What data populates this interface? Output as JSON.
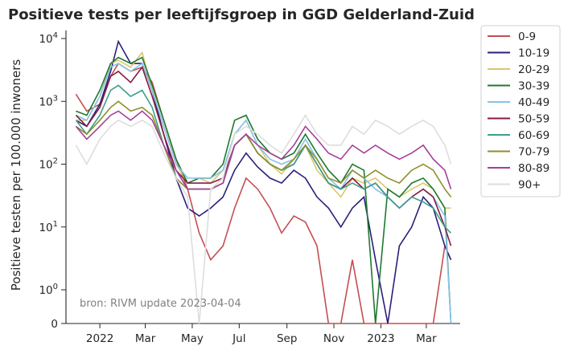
{
  "chart_data": {
    "type": "line",
    "title": "Positieve tests per leeftijfsgroep in GGD Gelderland-Zuid",
    "xlabel": "",
    "ylabel": "Positieve testen per 100.000 inwoners",
    "yscale": "symlog",
    "y_ticks": [
      {
        "value": 0,
        "label": "0"
      },
      {
        "value": 1,
        "label": "10^0"
      },
      {
        "value": 10,
        "label": "10^1"
      },
      {
        "value": 100,
        "label": "10^2"
      },
      {
        "value": 1000,
        "label": "10^3"
      },
      {
        "value": 10000,
        "label": "10^4"
      }
    ],
    "x_ticks": [
      {
        "date": "2022-01-01",
        "label": "2022"
      },
      {
        "date": "2022-03-01",
        "label": "Mar"
      },
      {
        "date": "2022-05-01",
        "label": "May"
      },
      {
        "date": "2022-07-01",
        "label": "Jul"
      },
      {
        "date": "2022-09-01",
        "label": "Sep"
      },
      {
        "date": "2022-11-01",
        "label": "Nov"
      },
      {
        "date": "2023-01-01",
        "label": "2023"
      },
      {
        "date": "2023-03-01",
        "label": "Mar"
      }
    ],
    "xlim": [
      "2021-11-18",
      "2023-04-14"
    ],
    "grid": false,
    "legend_placement": "outside-right-top",
    "annotation": "bron: RIVM update 2023-04-04",
    "x": [
      "2021-12-01",
      "2021-12-15",
      "2022-01-01",
      "2022-01-15",
      "2022-01-25",
      "2022-02-10",
      "2022-02-25",
      "2022-03-10",
      "2022-03-25",
      "2022-04-10",
      "2022-04-25",
      "2022-05-10",
      "2022-05-25",
      "2022-06-10",
      "2022-06-25",
      "2022-07-10",
      "2022-07-25",
      "2022-08-10",
      "2022-08-25",
      "2022-09-10",
      "2022-09-25",
      "2022-10-10",
      "2022-10-25",
      "2022-11-10",
      "2022-11-25",
      "2022-12-10",
      "2022-12-25",
      "2023-01-10",
      "2023-01-25",
      "2023-02-10",
      "2023-02-25",
      "2023-03-10",
      "2023-03-25",
      "2023-04-02"
    ],
    "series": [
      {
        "name": "0-9",
        "color": "#c44e52",
        "values": [
          1300,
          700,
          900,
          2500,
          4000,
          3000,
          3500,
          2000,
          500,
          120,
          40,
          8,
          3,
          5,
          20,
          60,
          40,
          20,
          8,
          15,
          12,
          5,
          0,
          0,
          3,
          0,
          0,
          0,
          0,
          0,
          0,
          0,
          5,
          3
        ]
      },
      {
        "name": "10-19",
        "color": "#2a1f7a",
        "values": [
          500,
          400,
          900,
          3000,
          9000,
          4000,
          4000,
          1500,
          300,
          60,
          20,
          15,
          20,
          30,
          80,
          150,
          90,
          60,
          50,
          80,
          60,
          30,
          20,
          10,
          20,
          30,
          3,
          0,
          5,
          10,
          30,
          20,
          5,
          3
        ]
      },
      {
        "name": "20-29",
        "color": "#dcc66a",
        "values": [
          500,
          500,
          1200,
          4000,
          4500,
          3500,
          6000,
          1500,
          400,
          100,
          50,
          60,
          50,
          80,
          300,
          500,
          200,
          100,
          70,
          120,
          200,
          80,
          50,
          30,
          60,
          50,
          60,
          40,
          30,
          40,
          50,
          40,
          20,
          20
        ]
      },
      {
        "name": "30-39",
        "color": "#1e7a2e",
        "values": [
          700,
          600,
          1500,
          4000,
          5000,
          4000,
          5000,
          1800,
          500,
          120,
          50,
          60,
          60,
          100,
          500,
          600,
          250,
          150,
          120,
          150,
          300,
          150,
          80,
          50,
          100,
          80,
          0,
          40,
          30,
          50,
          60,
          40,
          20,
          0
        ]
      },
      {
        "name": "40-49",
        "color": "#87c3e9",
        "values": [
          600,
          500,
          1200,
          3500,
          4000,
          3000,
          4000,
          1500,
          400,
          100,
          60,
          60,
          60,
          80,
          300,
          500,
          200,
          120,
          100,
          120,
          250,
          120,
          60,
          40,
          80,
          60,
          40,
          30,
          20,
          30,
          40,
          30,
          15,
          0
        ]
      },
      {
        "name": "50-59",
        "color": "#8a1a42",
        "values": [
          600,
          400,
          800,
          2500,
          3000,
          2000,
          3500,
          1200,
          300,
          80,
          50,
          50,
          50,
          60,
          200,
          300,
          150,
          100,
          80,
          100,
          200,
          100,
          50,
          40,
          60,
          40,
          50,
          30,
          20,
          30,
          40,
          30,
          10,
          5
        ]
      },
      {
        "name": "60-69",
        "color": "#3aa08a",
        "values": [
          500,
          300,
          600,
          1500,
          1800,
          1200,
          1500,
          800,
          200,
          60,
          40,
          40,
          40,
          50,
          200,
          300,
          150,
          100,
          80,
          100,
          200,
          100,
          50,
          40,
          50,
          40,
          50,
          30,
          20,
          30,
          25,
          20,
          10,
          8
        ]
      },
      {
        "name": "70-79",
        "color": "#8f8f2e",
        "values": [
          400,
          300,
          500,
          800,
          1000,
          700,
          800,
          600,
          200,
          60,
          40,
          40,
          40,
          50,
          200,
          300,
          150,
          100,
          80,
          120,
          200,
          120,
          60,
          50,
          80,
          60,
          80,
          60,
          50,
          80,
          100,
          80,
          40,
          30
        ]
      },
      {
        "name": "80-89",
        "color": "#a43f9a",
        "values": [
          400,
          250,
          400,
          600,
          700,
          500,
          700,
          500,
          200,
          80,
          40,
          40,
          40,
          50,
          200,
          300,
          200,
          150,
          120,
          200,
          400,
          250,
          150,
          120,
          200,
          150,
          200,
          150,
          120,
          150,
          200,
          120,
          80,
          40
        ]
      },
      {
        "name": "90+",
        "color": "#dddddd",
        "values": [
          200,
          100,
          250,
          400,
          500,
          400,
          500,
          400,
          150,
          60,
          30,
          0,
          40,
          60,
          300,
          400,
          300,
          200,
          150,
          300,
          600,
          300,
          200,
          200,
          400,
          300,
          500,
          400,
          300,
          400,
          500,
          400,
          200,
          100
        ]
      }
    ]
  }
}
